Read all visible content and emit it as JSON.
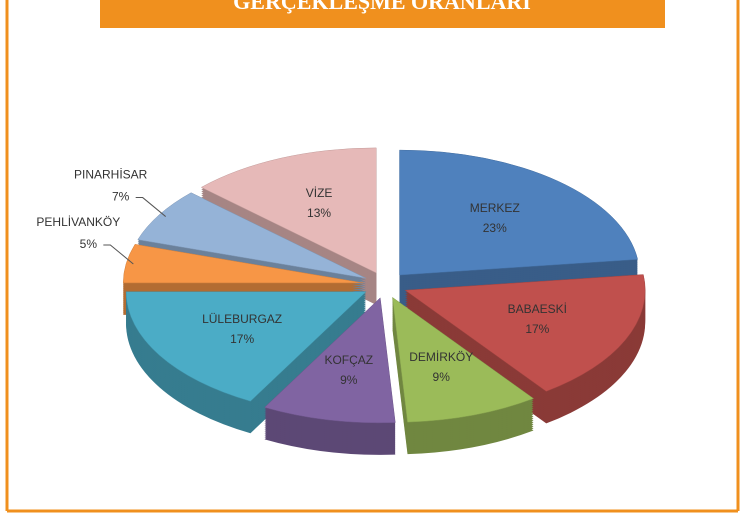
{
  "chart_data": {
    "type": "pie",
    "title": "GERÇEKLEŞME ORANLARI",
    "categories": [
      "MERKEZ",
      "BABAESKİ",
      "DEMİRKÖY",
      "KOFÇAZ",
      "LÜLEBURGAZ",
      "PEHLİVANKÖY",
      "PINARHİSAR",
      "VİZE"
    ],
    "values": [
      23,
      17,
      9,
      9,
      17,
      5,
      7,
      13
    ],
    "value_labels": [
      "23%",
      "17%",
      "9%",
      "9%",
      "17%",
      "5%",
      "7%",
      "13%"
    ],
    "colors": [
      "#4f81bd",
      "#c0504d",
      "#9bbb59",
      "#8064a2",
      "#4bacc6",
      "#f79646",
      "#95b3d7",
      "#e6b9b8"
    ]
  }
}
